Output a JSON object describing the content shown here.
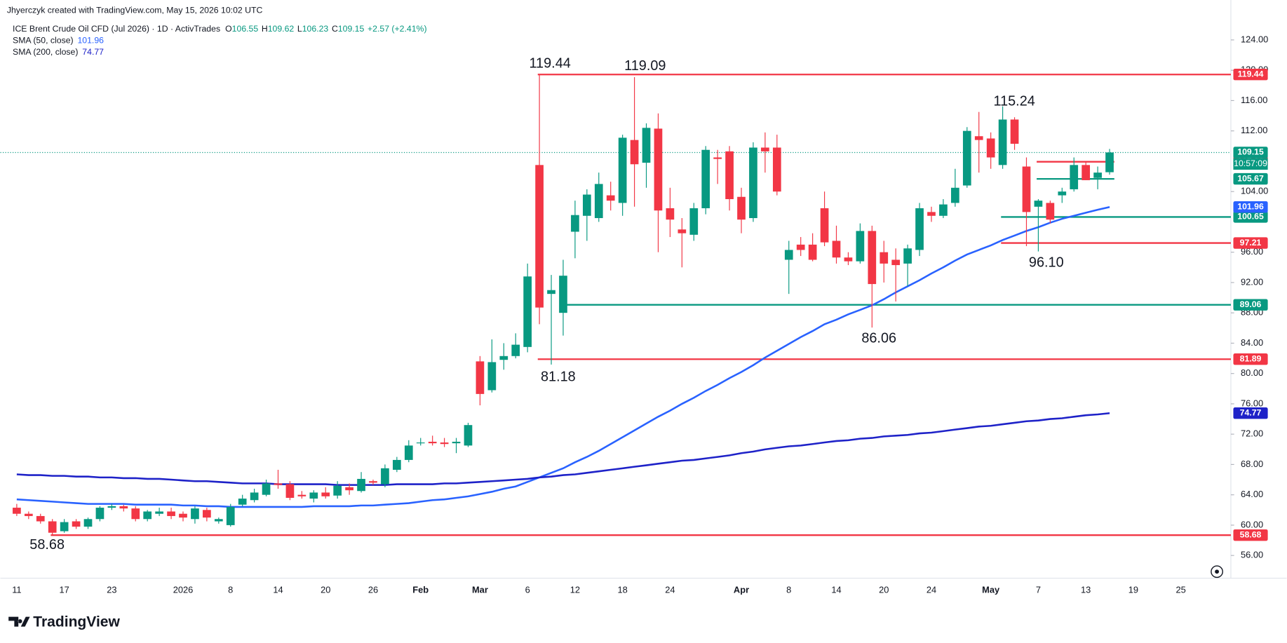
{
  "header": {
    "attribution": "Jhyerczyk created with TradingView.com, May 15, 2026 10:02 UTC",
    "symbol": "ICE Brent Crude Oil CFD (Jul 2026) · 1D · ActivTrades",
    "ohlc_labels": [
      "O",
      "H",
      "L",
      "C"
    ],
    "change": "+2.57 (+2.41%)"
  },
  "chart_data": {
    "type": "candlestick",
    "categories": [
      "11",
      null,
      null,
      null,
      "17",
      null,
      null,
      null,
      "23",
      null,
      null,
      null,
      null,
      null,
      "2026",
      null,
      null,
      null,
      "8",
      null,
      null,
      null,
      "14",
      null,
      null,
      null,
      "20",
      null,
      null,
      null,
      "26",
      null,
      null,
      null,
      "Feb",
      null,
      null,
      null,
      null,
      "Mar",
      null,
      null,
      null,
      "6",
      null,
      null,
      null,
      "12",
      null,
      null,
      null,
      "18",
      null,
      null,
      null,
      "24",
      null,
      null,
      null,
      null,
      null,
      "Apr",
      null,
      null,
      null,
      "8",
      null,
      null,
      null,
      "14",
      null,
      null,
      null,
      "20",
      null,
      null,
      null,
      "24",
      null,
      null,
      null,
      null,
      "May",
      null,
      null,
      null,
      "7",
      null,
      null,
      null,
      "13",
      null,
      null,
      null,
      "19",
      null,
      null,
      null,
      "25"
    ],
    "open": [
      62.3,
      61.5,
      61.2,
      60.5,
      59.2,
      60.5,
      59.8,
      60.8,
      62.3,
      62.5,
      62.2,
      60.8,
      61.5,
      61.8,
      61.5,
      60.8,
      62,
      60.5,
      60.0,
      62.7,
      63.3,
      64,
      65.5,
      65.4,
      64,
      63.5,
      64.3,
      63.9,
      65,
      64.5,
      65.8,
      65.4,
      67.3,
      68.6,
      70.9,
      71.0,
      70.9,
      70.8,
      70.5,
      81.6,
      77.8,
      81.8,
      82.3,
      83.5,
      107.5,
      90.5,
      88,
      98.7,
      100.8,
      100.5,
      103.5,
      102.5,
      110.8,
      107.8,
      112.3,
      101.8,
      99,
      98.3,
      101.8,
      108.5,
      109.3,
      103.3,
      100.5,
      109.8,
      109.8,
      95,
      97,
      97,
      101.8,
      97.5,
      95.3,
      94.8,
      98.8,
      96,
      95,
      94.5,
      96.3,
      101.3,
      100.8,
      102.5,
      104.8,
      111.3,
      111,
      107.5,
      113.5,
      107.3,
      102,
      102.5,
      103.5,
      104.3,
      107.5,
      105.8,
      106.55,
      null,
      null,
      null,
      null,
      null,
      null
    ],
    "high": [
      62.8,
      61.8,
      61.5,
      60.8,
      60.8,
      60.8,
      61,
      62.5,
      62.8,
      62.7,
      62.5,
      62,
      62.3,
      62.3,
      61.8,
      62.5,
      62.3,
      61,
      62.8,
      64,
      64.8,
      66,
      67.3,
      65.8,
      64.5,
      64.6,
      65,
      65.8,
      65.5,
      67,
      66,
      68,
      69,
      71.2,
      71.5,
      71.8,
      71.5,
      71.5,
      73.5,
      82.3,
      84.5,
      84,
      85.3,
      94.5,
      119.44,
      93,
      95,
      102.8,
      104.3,
      106.5,
      105.3,
      111.5,
      119.09,
      113,
      114.3,
      104.5,
      100.5,
      102.5,
      110,
      109.5,
      110,
      104.5,
      110.5,
      111.8,
      111.5,
      97.5,
      98,
      98.5,
      104,
      99.5,
      96,
      99.8,
      99.5,
      97.5,
      96.5,
      97,
      102.5,
      102,
      103,
      107,
      112.5,
      114.5,
      111.8,
      115.24,
      113.8,
      108.5,
      103,
      102.8,
      104.5,
      108.5,
      108,
      107.3,
      109.62,
      null,
      null,
      null,
      null,
      null,
      null
    ],
    "low": [
      61.2,
      60.8,
      60.2,
      58.68,
      59,
      59.5,
      59.5,
      60.5,
      62,
      61.8,
      60.5,
      60.5,
      61.2,
      60.8,
      60.5,
      60.2,
      60.5,
      60.2,
      59.8,
      62.5,
      63,
      63.8,
      64.8,
      63.3,
      63.5,
      63,
      63.5,
      63.5,
      64,
      64.3,
      65.3,
      65,
      67,
      68.3,
      70.5,
      70.5,
      70.3,
      69.5,
      70.3,
      75.8,
      77.5,
      80.5,
      82,
      82.8,
      86.5,
      81.18,
      85,
      95.2,
      97.5,
      100,
      101.5,
      100.8,
      102,
      104.5,
      96,
      98,
      94,
      97.5,
      101,
      105,
      101.5,
      98.5,
      100,
      106.5,
      103.5,
      90.5,
      95.5,
      94.8,
      96.8,
      94.5,
      94.3,
      94.5,
      86.06,
      92,
      89.5,
      91.5,
      95.5,
      100,
      100.5,
      102,
      104.5,
      106.5,
      107,
      107,
      109.5,
      96.8,
      96.1,
      99.8,
      102.5,
      104,
      105.5,
      104.3,
      106.23,
      null,
      null,
      null,
      null,
      null,
      null
    ],
    "close": [
      61.5,
      61.2,
      60.5,
      59,
      60.4,
      59.8,
      60.8,
      62.3,
      62.5,
      62.2,
      60.8,
      61.8,
      61.8,
      61.2,
      61,
      62.2,
      61,
      60.8,
      62.4,
      63.5,
      64.3,
      65.5,
      65.3,
      63.6,
      63.8,
      64.3,
      63.8,
      65.2,
      64.6,
      66.1,
      65.6,
      67.5,
      68.6,
      70.5,
      70.9,
      70.8,
      70.7,
      71.0,
      73.2,
      77.3,
      81.5,
      82.3,
      83.8,
      92.8,
      88.7,
      91,
      92.9,
      100.9,
      103.6,
      105,
      102.8,
      111.1,
      107.6,
      112.4,
      101.5,
      100.3,
      98.5,
      101.8,
      109.5,
      108.3,
      103,
      100.3,
      109.8,
      109.3,
      104,
      96.3,
      96.3,
      95,
      97.3,
      95.3,
      94.8,
      98.8,
      91.8,
      94.5,
      94.3,
      96.5,
      101.8,
      100.8,
      102.3,
      104.5,
      112,
      110.8,
      108.5,
      113.5,
      110.3,
      101.3,
      102.8,
      100.3,
      104,
      107.5,
      105.5,
      106.5,
      109.15,
      null,
      null,
      null,
      null,
      null,
      null
    ],
    "up_color": "#089981",
    "down_color": "#f23645",
    "series": [
      {
        "name": "SMA (50, close)",
        "color": "#2962ff",
        "values": [
          63.4,
          63.3,
          63.2,
          63.1,
          63.0,
          62.9,
          62.8,
          62.8,
          62.8,
          62.8,
          62.7,
          62.7,
          62.7,
          62.7,
          62.6,
          62.6,
          62.5,
          62.5,
          62.4,
          62.4,
          62.4,
          62.4,
          62.4,
          62.4,
          62.4,
          62.5,
          62.5,
          62.5,
          62.5,
          62.6,
          62.6,
          62.7,
          62.8,
          62.9,
          63.1,
          63.3,
          63.4,
          63.6,
          63.8,
          64.1,
          64.4,
          64.8,
          65.1,
          65.7,
          66.3,
          66.9,
          67.5,
          68.3,
          69.0,
          69.8,
          70.7,
          71.6,
          72.5,
          73.4,
          74.3,
          75.1,
          76.0,
          76.8,
          77.7,
          78.5,
          79.4,
          80.2,
          81.1,
          82.1,
          83.0,
          83.9,
          84.8,
          85.6,
          86.5,
          87.1,
          87.8,
          88.4,
          89.0,
          89.8,
          90.7,
          91.5,
          92.3,
          93.2,
          94.0,
          94.9,
          95.7,
          96.3,
          96.9,
          97.6,
          98.2,
          98.8,
          99.3,
          99.9,
          100.4,
          100.8,
          101.2,
          101.6,
          101.96,
          null,
          null,
          null,
          null,
          null,
          null
        ]
      },
      {
        "name": "SMA (200, close)",
        "color": "#1e22c8",
        "values": [
          66.7,
          66.6,
          66.6,
          66.5,
          66.5,
          66.4,
          66.4,
          66.3,
          66.3,
          66.2,
          66.2,
          66.1,
          66.1,
          66.0,
          65.9,
          65.8,
          65.8,
          65.7,
          65.6,
          65.5,
          65.5,
          65.5,
          65.4,
          65.4,
          65.4,
          65.4,
          65.4,
          65.3,
          65.3,
          65.3,
          65.3,
          65.3,
          65.4,
          65.4,
          65.4,
          65.4,
          65.5,
          65.5,
          65.6,
          65.7,
          65.8,
          65.9,
          66.0,
          66.1,
          66.3,
          66.4,
          66.6,
          66.7,
          66.9,
          67.1,
          67.3,
          67.5,
          67.7,
          67.9,
          68.1,
          68.3,
          68.5,
          68.6,
          68.8,
          69.0,
          69.2,
          69.5,
          69.7,
          70.0,
          70.2,
          70.4,
          70.5,
          70.7,
          70.9,
          71.1,
          71.2,
          71.4,
          71.5,
          71.7,
          71.8,
          71.9,
          72.1,
          72.2,
          72.4,
          72.6,
          72.8,
          73.0,
          73.1,
          73.3,
          73.5,
          73.7,
          73.8,
          74.0,
          74.1,
          74.3,
          74.5,
          74.6,
          74.77,
          null,
          null,
          null,
          null,
          null,
          null
        ]
      }
    ],
    "ylim": [
      53,
      128.4
    ],
    "yticks": [
      {
        "value": 56,
        "label": "56.00"
      },
      {
        "value": 60,
        "label": "60.00"
      },
      {
        "value": 64,
        "label": "64.00"
      },
      {
        "value": 68,
        "label": "68.00"
      },
      {
        "value": 72,
        "label": "72.00"
      },
      {
        "value": 76,
        "label": "76.00"
      },
      {
        "value": 80,
        "label": "80.00"
      },
      {
        "value": 84,
        "label": "84.00"
      },
      {
        "value": 88,
        "label": "88.00"
      },
      {
        "value": 92,
        "label": "92.00"
      },
      {
        "value": 96,
        "label": "96.00"
      },
      {
        "value": 104,
        "label": "104.00"
      },
      {
        "value": 112,
        "label": "112.00"
      },
      {
        "value": 116,
        "label": "116.00"
      },
      {
        "value": 120,
        "label": "120.00"
      },
      {
        "value": 124,
        "label": "124.00"
      }
    ],
    "levels": [
      {
        "value": 119.44,
        "color": "#f23645"
      },
      {
        "value": 107.93,
        "color": "#f23645"
      },
      {
        "value": 105.67,
        "color": "#089981"
      },
      {
        "value": 100.65,
        "color": "#089981"
      },
      {
        "value": 97.21,
        "color": "#f23645"
      },
      {
        "value": 89.06,
        "color": "#089981"
      },
      {
        "value": 81.89,
        "color": "#f23645"
      },
      {
        "value": 58.68,
        "color": "#f23645"
      }
    ],
    "annotations": [
      "119.44",
      "119.09",
      "115.24",
      "96.10",
      "86.06",
      "81.18",
      "58.68"
    ],
    "countdown": "10:57:09"
  },
  "footer": {
    "logo": "TradingView"
  }
}
